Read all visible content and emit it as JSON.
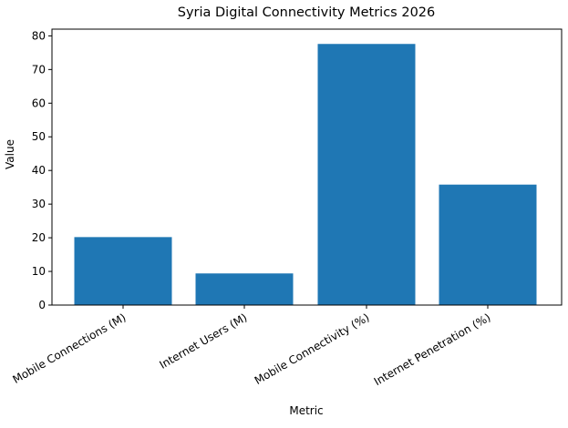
{
  "chart_data": {
    "type": "bar",
    "title": "Syria Digital Connectivity Metrics 2026",
    "xlabel": "Metric",
    "ylabel": "Value",
    "categories": [
      "Mobile Connections (M)",
      "Internet Users (M)",
      "Mobile Connectivity (%)",
      "Internet Penetration (%)"
    ],
    "values": [
      20.2,
      9.4,
      77.6,
      35.8
    ],
    "ylim": [
      0,
      82
    ],
    "yticks": [
      0,
      10,
      20,
      30,
      40,
      50,
      60,
      70,
      80
    ],
    "grid": false,
    "legend": null,
    "bar_color": "#1f77b4"
  }
}
